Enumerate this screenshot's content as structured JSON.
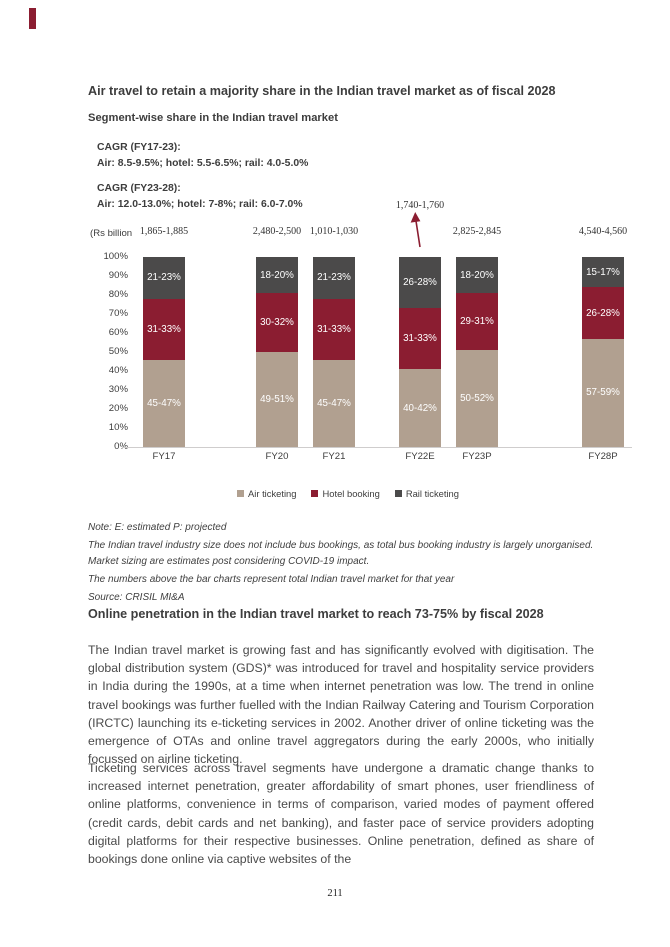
{
  "page": {
    "number": "211"
  },
  "accent_color": "#8b1d31",
  "section1": {
    "title": "Air travel to retain a majority share in the Indian travel market as of fiscal 2028",
    "subtitle": "Segment-wise share in the Indian travel market",
    "cagr_blocks": [
      {
        "label": "CAGR (FY17-23):",
        "detail": "Air: 8.5-9.5%; hotel: 5.5-6.5%; rail: 4.0-5.0%"
      },
      {
        "label": "CAGR (FY23-28):",
        "detail": "Air: 12.0-13.0%; hotel: 7-8%; rail: 6.0-7.0%"
      }
    ]
  },
  "chart_data": {
    "type": "bar",
    "stacked": true,
    "title": "Segment-wise share in the Indian travel market",
    "unit_label": "(Rs billion",
    "categories": [
      "FY17",
      "FY20",
      "FY21",
      "FY22E",
      "FY23P",
      "FY28P"
    ],
    "totals": [
      "1,865-1,885",
      "2,480-2,500",
      "1,010-1,030",
      "1,740-1,760",
      "2,825-2,845",
      "4,540-4,560"
    ],
    "series": [
      {
        "name": "Air ticketing",
        "color": "#b1a090",
        "values": [
          46,
          50,
          46,
          41,
          51,
          57
        ],
        "labels": [
          "45-47%",
          "49-51%",
          "45-47%",
          "40-42%",
          "50-52%",
          "57-59%"
        ]
      },
      {
        "name": "Hotel booking",
        "color": "#8b1d31",
        "values": [
          32,
          31,
          32,
          32,
          30,
          27
        ],
        "labels": [
          "31-33%",
          "30-32%",
          "31-33%",
          "31-33%",
          "29-31%",
          "26-28%"
        ]
      },
      {
        "name": "Rail ticketing",
        "color": "#4b4a4a",
        "values": [
          22,
          19,
          22,
          27,
          19,
          16
        ],
        "labels": [
          "21-23%",
          "18-20%",
          "21-23%",
          "26-28%",
          "18-20%",
          "15-17%"
        ]
      }
    ],
    "y_ticks": [
      "100%",
      "90%",
      "80%",
      "70%",
      "60%",
      "50%",
      "40%",
      "30%",
      "20%",
      "10%",
      "0%"
    ],
    "ylim": [
      0,
      100
    ],
    "grid": false,
    "legend_position": "bottom",
    "annotation": {
      "category": "FY22E",
      "type": "up-arrow from bar to total label"
    }
  },
  "notes": [
    "Note: E: estimated P: projected",
    "The Indian travel industry size does not include bus bookings, as total bus booking industry is largely unorganised. Market sizing are estimates post considering COVID-19 impact.",
    "The numbers above the bar charts represent total Indian travel market for that year",
    "Source: CRISIL MI&A"
  ],
  "section2": {
    "title": "Online penetration in the Indian travel market to reach 73-75% by fiscal 2028",
    "paragraphs": [
      "The Indian travel market is growing fast and has significantly evolved with digitisation. The global distribution system (GDS)* was introduced for travel and hospitality service providers in India during the 1990s, at a time when internet penetration was low. The trend in online travel bookings was further fuelled with the Indian Railway Catering and Tourism Corporation (IRCTC) launching its e-ticketing services in 2002. Another driver of online ticketing was the emergence of OTAs and online travel aggregators during the early 2000s, who initially focussed on airline ticketing.",
      "Ticketing services across travel segments have undergone a dramatic change thanks to increased internet penetration, greater affordability of smart phones, user friendliness of online platforms, convenience in terms of comparison, varied modes of payment offered (credit cards, debit cards and net banking), and faster pace of service providers adopting digital platforms for their respective businesses. Online penetration, defined as share of bookings done online via captive websites of the"
    ]
  }
}
